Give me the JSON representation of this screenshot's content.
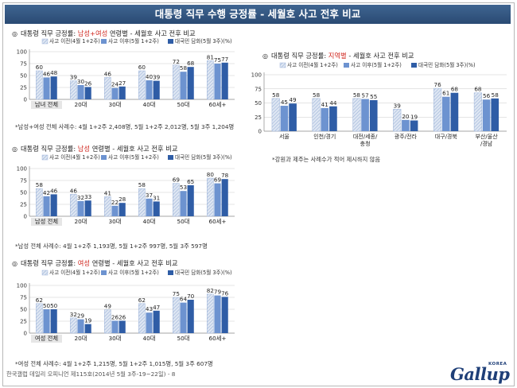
{
  "header": {
    "title": "대통령 직무 수행 긍정률 - 세월호 사고 전후 비교"
  },
  "legend_labels": [
    "사고 이전(4월 1+2주)",
    "사고 이후(5월 1+2주)",
    "대국민 담화(5월 3주)(%)"
  ],
  "colors": {
    "before": "#c0cfe6",
    "after": "#6d93d0",
    "speech": "#2f5da6",
    "banner": "#2f5280",
    "highlight": "#d0261e",
    "logo": "#1f3f78"
  },
  "footer": {
    "text": "한국갤럽 데일리 오피니언 제115호(2014년 5월 3주-19~22일) - 8"
  },
  "logo": {
    "text": "Gallup",
    "sub": "KOREA"
  },
  "charts": [
    {
      "title_prefix": "대통령 직무 긍정률:",
      "title_highlight": "남성+여성",
      "title_suffix": "연령별 - 세월호 사고 전후 비교",
      "note": "*남성+여성 전체 사례수: 4월 1+2주 2,408명, 5월 1+2주 2,012명, 5월 3주 1,204명"
    },
    {
      "title_prefix": "대통령 직무 긍정률:",
      "title_highlight": "남성",
      "title_suffix": "연령별 - 세월호 사고 전후 비교",
      "note": "*남성 전체 사례수: 4월 1+2주 1,193명, 5월 1+2주 997명, 5월 3주 597명"
    },
    {
      "title_prefix": "대통령 직무 긍정률:",
      "title_highlight": "여성",
      "title_suffix": "연령별 - 세월호 사고 전후 비교",
      "note": "*여성 전체 사례수: 4월 1+2주 1,215명, 5월 1+2주 1,015명, 5월 3주 607명"
    },
    {
      "title_prefix": "대통령 직무 긍정률:",
      "title_highlight": "지역별",
      "title_suffix": "- 세월호 사고 전후 비교",
      "note": "*강원과 제주는 사례수가 적어 제시하지 않음"
    }
  ],
  "chart_data": [
    {
      "type": "bar",
      "categories": [
        "남녀 전체",
        "20대",
        "30대",
        "40대",
        "50대",
        "60세+"
      ],
      "series": [
        {
          "name": "사고 이전(4월 1+2주)",
          "values": [
            60,
            39,
            46,
            60,
            72,
            81
          ]
        },
        {
          "name": "사고 이후(5월 1+2주)",
          "values": [
            46,
            30,
            24,
            40,
            58,
            75
          ]
        },
        {
          "name": "대국민 담화(5월 3주)(%)",
          "values": [
            48,
            26,
            27,
            39,
            68,
            77
          ]
        }
      ],
      "yticks": [
        0,
        25,
        50,
        75,
        100
      ],
      "ylim": [
        0,
        100
      ],
      "grid": true,
      "legend": "top-right"
    },
    {
      "type": "bar",
      "categories": [
        "남성 전체",
        "20대",
        "30대",
        "40대",
        "50대",
        "60세+"
      ],
      "series": [
        {
          "name": "사고 이전(4월 1+2주)",
          "values": [
            58,
            46,
            41,
            58,
            69,
            80
          ]
        },
        {
          "name": "사고 이후(5월 1+2주)",
          "values": [
            42,
            32,
            22,
            37,
            53,
            69
          ]
        },
        {
          "name": "대국민 담화(5월 3주)(%)",
          "values": [
            46,
            33,
            28,
            31,
            65,
            78
          ]
        }
      ],
      "yticks": [
        0,
        25,
        50,
        75,
        100
      ],
      "ylim": [
        0,
        100
      ],
      "grid": true,
      "legend": "top-right"
    },
    {
      "type": "bar",
      "categories": [
        "여성 전체",
        "20대",
        "30대",
        "40대",
        "50대",
        "60세+"
      ],
      "series": [
        {
          "name": "사고 이전(4월 1+2주)",
          "values": [
            62,
            32,
            49,
            62,
            75,
            82
          ]
        },
        {
          "name": "사고 이후(5월 1+2주)",
          "values": [
            50,
            29,
            26,
            43,
            64,
            79
          ]
        },
        {
          "name": "대국민 담화(5월 3주)(%)",
          "values": [
            50,
            19,
            26,
            47,
            70,
            76
          ]
        }
      ],
      "yticks": [
        0,
        25,
        50,
        75,
        100
      ],
      "ylim": [
        0,
        100
      ],
      "grid": true,
      "legend": "top-right"
    },
    {
      "type": "bar",
      "categories": [
        "서울",
        "인천/경기",
        "대전/세종/충청",
        "광주/전라",
        "대구/경북",
        "부산/울산/경남"
      ],
      "series": [
        {
          "name": "사고 이전(4월 1+2주)",
          "values": [
            58,
            58,
            58,
            39,
            76,
            68
          ]
        },
        {
          "name": "사고 이후(5월 1+2주)",
          "values": [
            45,
            41,
            57,
            20,
            61,
            56
          ]
        },
        {
          "name": "대국민 담화(5월 3주)(%)",
          "values": [
            49,
            44,
            55,
            19,
            68,
            58
          ]
        }
      ],
      "yticks": [
        0,
        25,
        50,
        75,
        100
      ],
      "ylim": [
        0,
        100
      ],
      "grid": true,
      "legend": "top-right"
    }
  ]
}
